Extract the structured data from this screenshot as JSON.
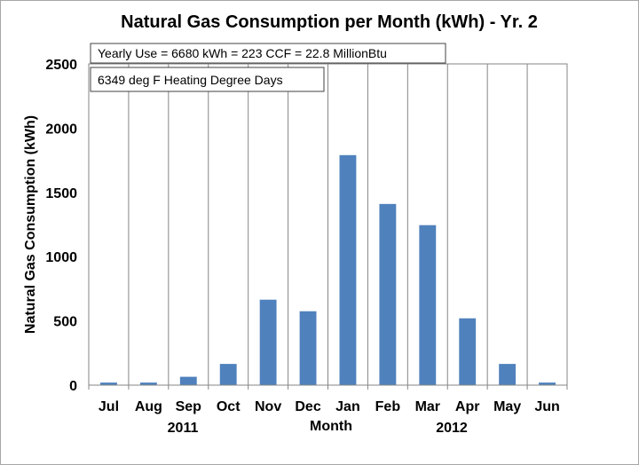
{
  "chart_data": {
    "type": "bar",
    "title": "Natural Gas Consumption per Month (kWh) - Yr. 2",
    "xlabel": "Month",
    "ylabel": "Natural Gas Consumption (kWh)",
    "categories": [
      "Jul",
      "Aug",
      "Sep",
      "Oct",
      "Nov",
      "Dec",
      "Jan",
      "Feb",
      "Mar",
      "Apr",
      "May",
      "Jun"
    ],
    "values": [
      20,
      20,
      65,
      165,
      665,
      575,
      1790,
      1410,
      1245,
      520,
      165,
      20
    ],
    "ylim": [
      0,
      2500
    ],
    "yticks": [
      "0",
      "500",
      "1000",
      "1500",
      "2000",
      "2500"
    ],
    "year_labels": [
      "2011",
      "2012"
    ],
    "annotations": [
      "Yearly Use = 6680 kWh = 223 CCF = 22.8 MillionBtu",
      "6349 deg F Heating Degree Days"
    ],
    "grid": "vertical",
    "bar_color": "#4f81bd"
  }
}
